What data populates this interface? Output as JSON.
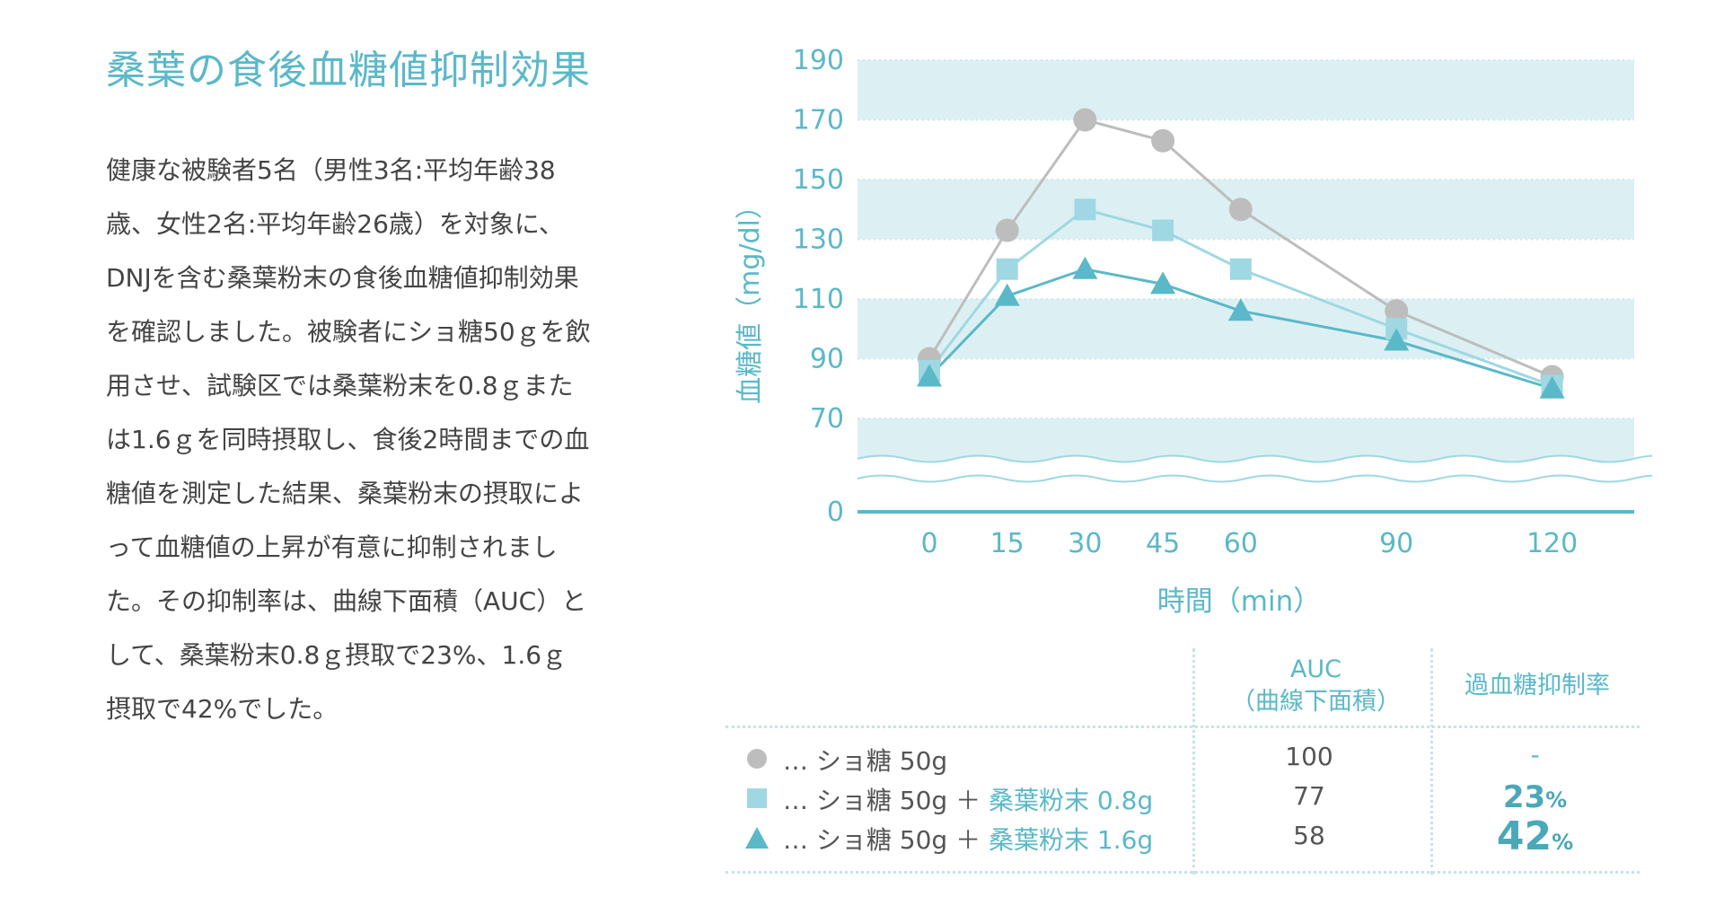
{
  "title": "桑葉の食後血糖値抑制効果",
  "description_lines": [
    "健康な被験者5名（男性3名:平均年齢38",
    "歳、女性2名:平均年齢26歳）を対象に、",
    "DNJを含む桑葉粉末の食後血糖値抑制効果",
    "を確認しました。被験者にショ糖50ｇを飲",
    "用させ、試験区では桑葉粉末を0.8ｇまた",
    "は1.6ｇを同時摂取し、食後2時間までの血",
    "糖値を測定した結果、桑葉粉末の摂取によ",
    "って血糖値の上昇が有意に抑制されまし",
    "た。その抑制率は、曲線下面積（AUC）と",
    "して、桑葉粉末0.8ｇ摂取で23%、1.6ｇ",
    "摂取で42%でした。"
  ],
  "colors": {
    "accent": "#5bb8c8",
    "band": "#dcf0f4",
    "sucrose": "#bdbdbd",
    "mulberry_08": "#9fd8e2",
    "mulberry_16": "#5bb8c8",
    "text": "#444444"
  },
  "chart_data": {
    "type": "line",
    "xlabel": "時間（min）",
    "ylabel": "血糖値（mg/dl）",
    "x": [
      0,
      15,
      30,
      45,
      60,
      90,
      120
    ],
    "x_tick_labels": [
      "0",
      "15",
      "30",
      "45",
      "60",
      "90",
      "120"
    ],
    "y_tick_labels": [
      "190",
      "170",
      "150",
      "130",
      "110",
      "90",
      "70",
      "0"
    ],
    "ylim": [
      70,
      190
    ],
    "axis_break": "between 0 and 70",
    "series": [
      {
        "name": "ショ糖 50g",
        "marker": "circle",
        "values": [
          90,
          133,
          170,
          163,
          140,
          106,
          84
        ]
      },
      {
        "name": "ショ糖 50g ＋ 桑葉粉末 0.8g",
        "marker": "square",
        "values": [
          86,
          120,
          140,
          133,
          120,
          100,
          81
        ]
      },
      {
        "name": "ショ糖 50g ＋ 桑葉粉末 1.6g",
        "marker": "triangle",
        "values": [
          84,
          111,
          120,
          115,
          106,
          96,
          80
        ]
      }
    ]
  },
  "table": {
    "headers": {
      "auc": "AUC",
      "auc_sub": "（曲線下面積）",
      "rate": "過血糖抑制率"
    },
    "rows": [
      {
        "marker": "circle",
        "prefix": "… ショ糖 50g",
        "plus": "",
        "addon": "",
        "auc": "100",
        "rate_num": "-",
        "rate_unit": ""
      },
      {
        "marker": "square",
        "prefix": "… ショ糖 50g",
        "plus": " ＋ ",
        "addon": "桑葉粉末 0.8g",
        "auc": "77",
        "rate_num": "23",
        "rate_unit": "%"
      },
      {
        "marker": "triangle",
        "prefix": "… ショ糖 50g",
        "plus": " ＋ ",
        "addon": "桑葉粉末 1.6g",
        "auc": "58",
        "rate_num": "42",
        "rate_unit": "%"
      }
    ]
  }
}
